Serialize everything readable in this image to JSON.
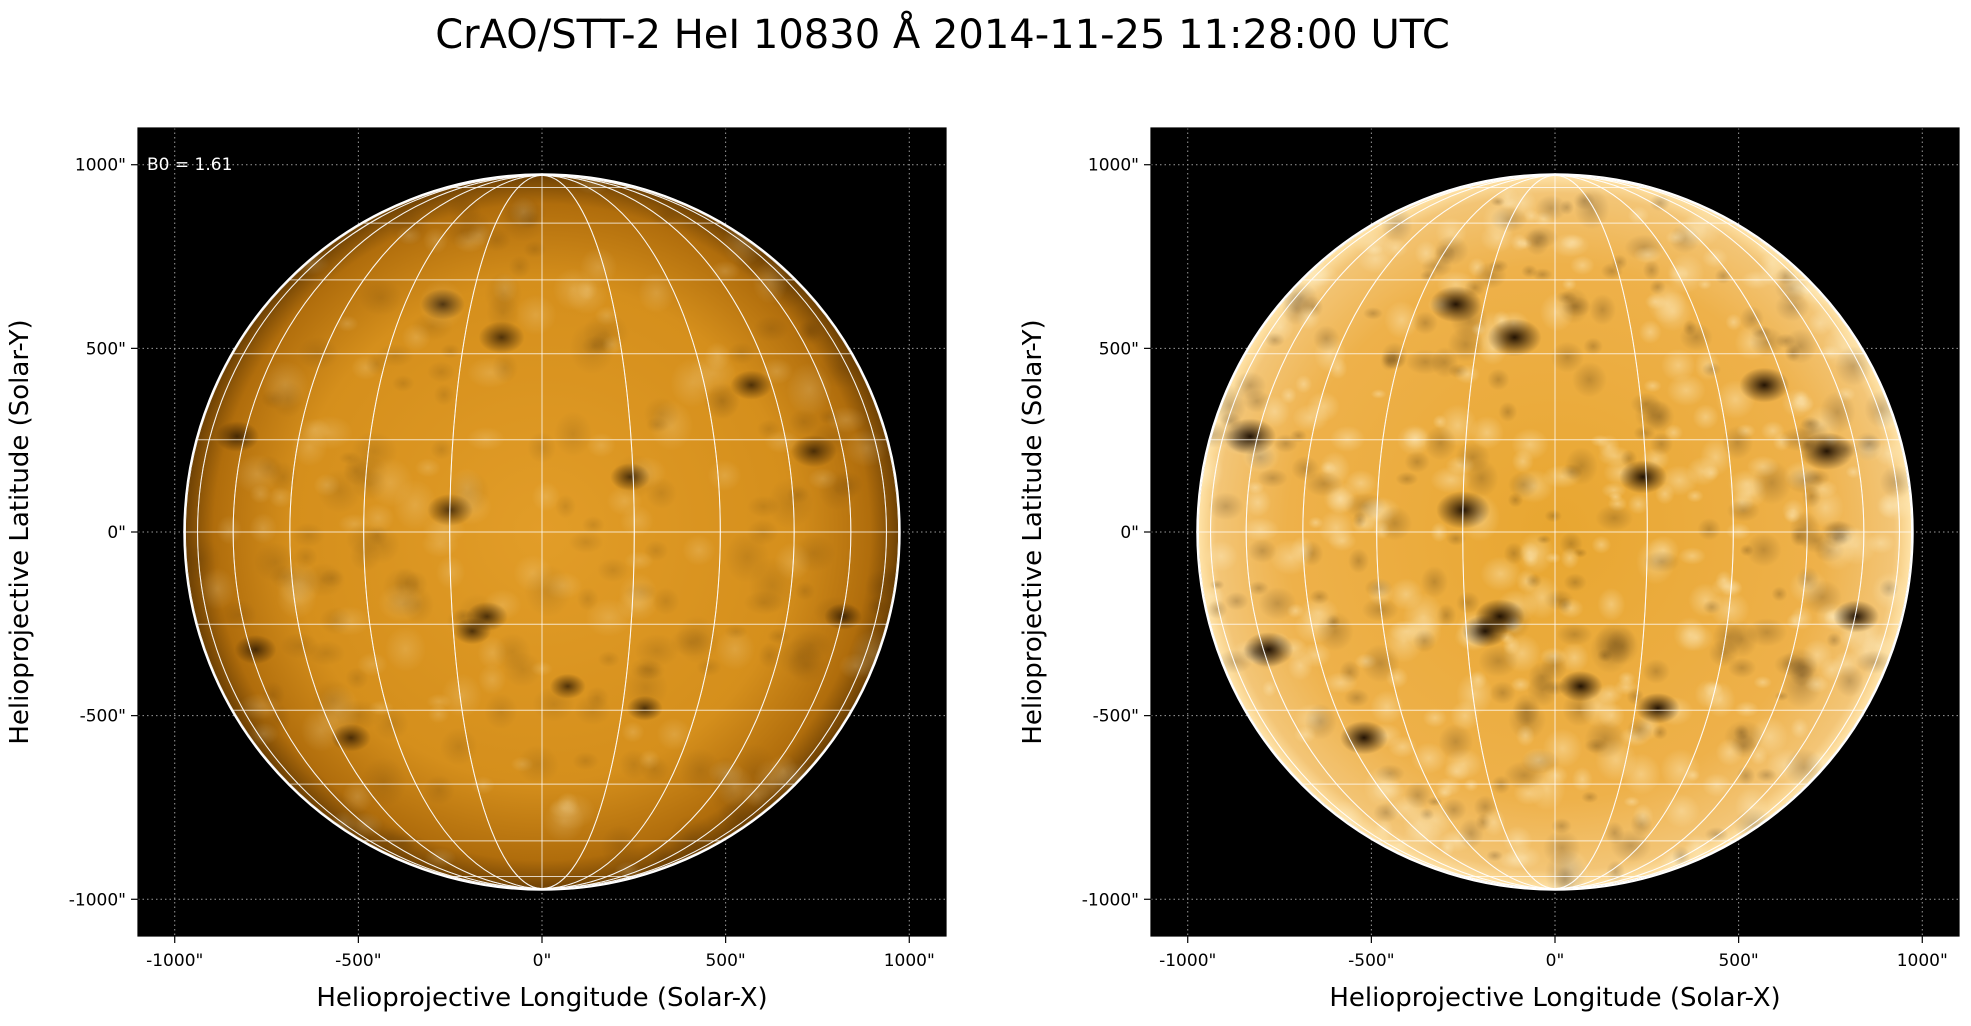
{
  "title": "CrAO/STT-2 HeI 10830 Å 2014-11-25 11:28:00 UTC",
  "annotation": "B0 = 1.61",
  "colors": {
    "background": "#000000",
    "disk_center": "#e29d28",
    "disk_limb": "#7a4a05",
    "grid": "#ffffff"
  },
  "panels": [
    {
      "name": "raw",
      "xlabel": "Helioprojective Longitude (Solar-X)",
      "ylabel": "Helioprojective Latitude (Solar-Y)",
      "xticks": [
        "-1000\"",
        "-500\"",
        "0\"",
        "500\"",
        "1000\""
      ],
      "yticks": [
        "1000\"",
        "500\"",
        "0\"",
        "-500\"",
        "-1000\""
      ],
      "contrast": "normal"
    },
    {
      "name": "enhanced",
      "xlabel": "Helioprojective Longitude (Solar-X)",
      "ylabel": "Helioprojective Latitude (Solar-Y)",
      "xticks": [
        "-1000\"",
        "-500\"",
        "0\"",
        "500\"",
        "1000\""
      ],
      "yticks": [
        "1000\"",
        "500\"",
        "0\"",
        "-500\"",
        "-1000\""
      ],
      "contrast": "high"
    }
  ],
  "chart_data": {
    "type": "heatmap",
    "xlim": [
      -1100,
      1100
    ],
    "ylim": [
      -1100,
      1100
    ],
    "tick_values": [
      -1000,
      -500,
      0,
      500,
      1000
    ],
    "solar_radius_arcsec": 971,
    "heliographic_grid_step_deg": 15,
    "grid": true,
    "dark_features": [
      {
        "x": -270,
        "y": 620
      },
      {
        "x": -110,
        "y": 530
      },
      {
        "x": 570,
        "y": 400
      },
      {
        "x": -830,
        "y": 260
      },
      {
        "x": 740,
        "y": 220
      },
      {
        "x": -250,
        "y": 60
      },
      {
        "x": 240,
        "y": 150
      },
      {
        "x": -150,
        "y": -230
      },
      {
        "x": -190,
        "y": -270
      },
      {
        "x": -780,
        "y": -320
      },
      {
        "x": 820,
        "y": -230
      },
      {
        "x": 280,
        "y": -480
      },
      {
        "x": -520,
        "y": -560
      },
      {
        "x": 70,
        "y": -420
      }
    ]
  }
}
